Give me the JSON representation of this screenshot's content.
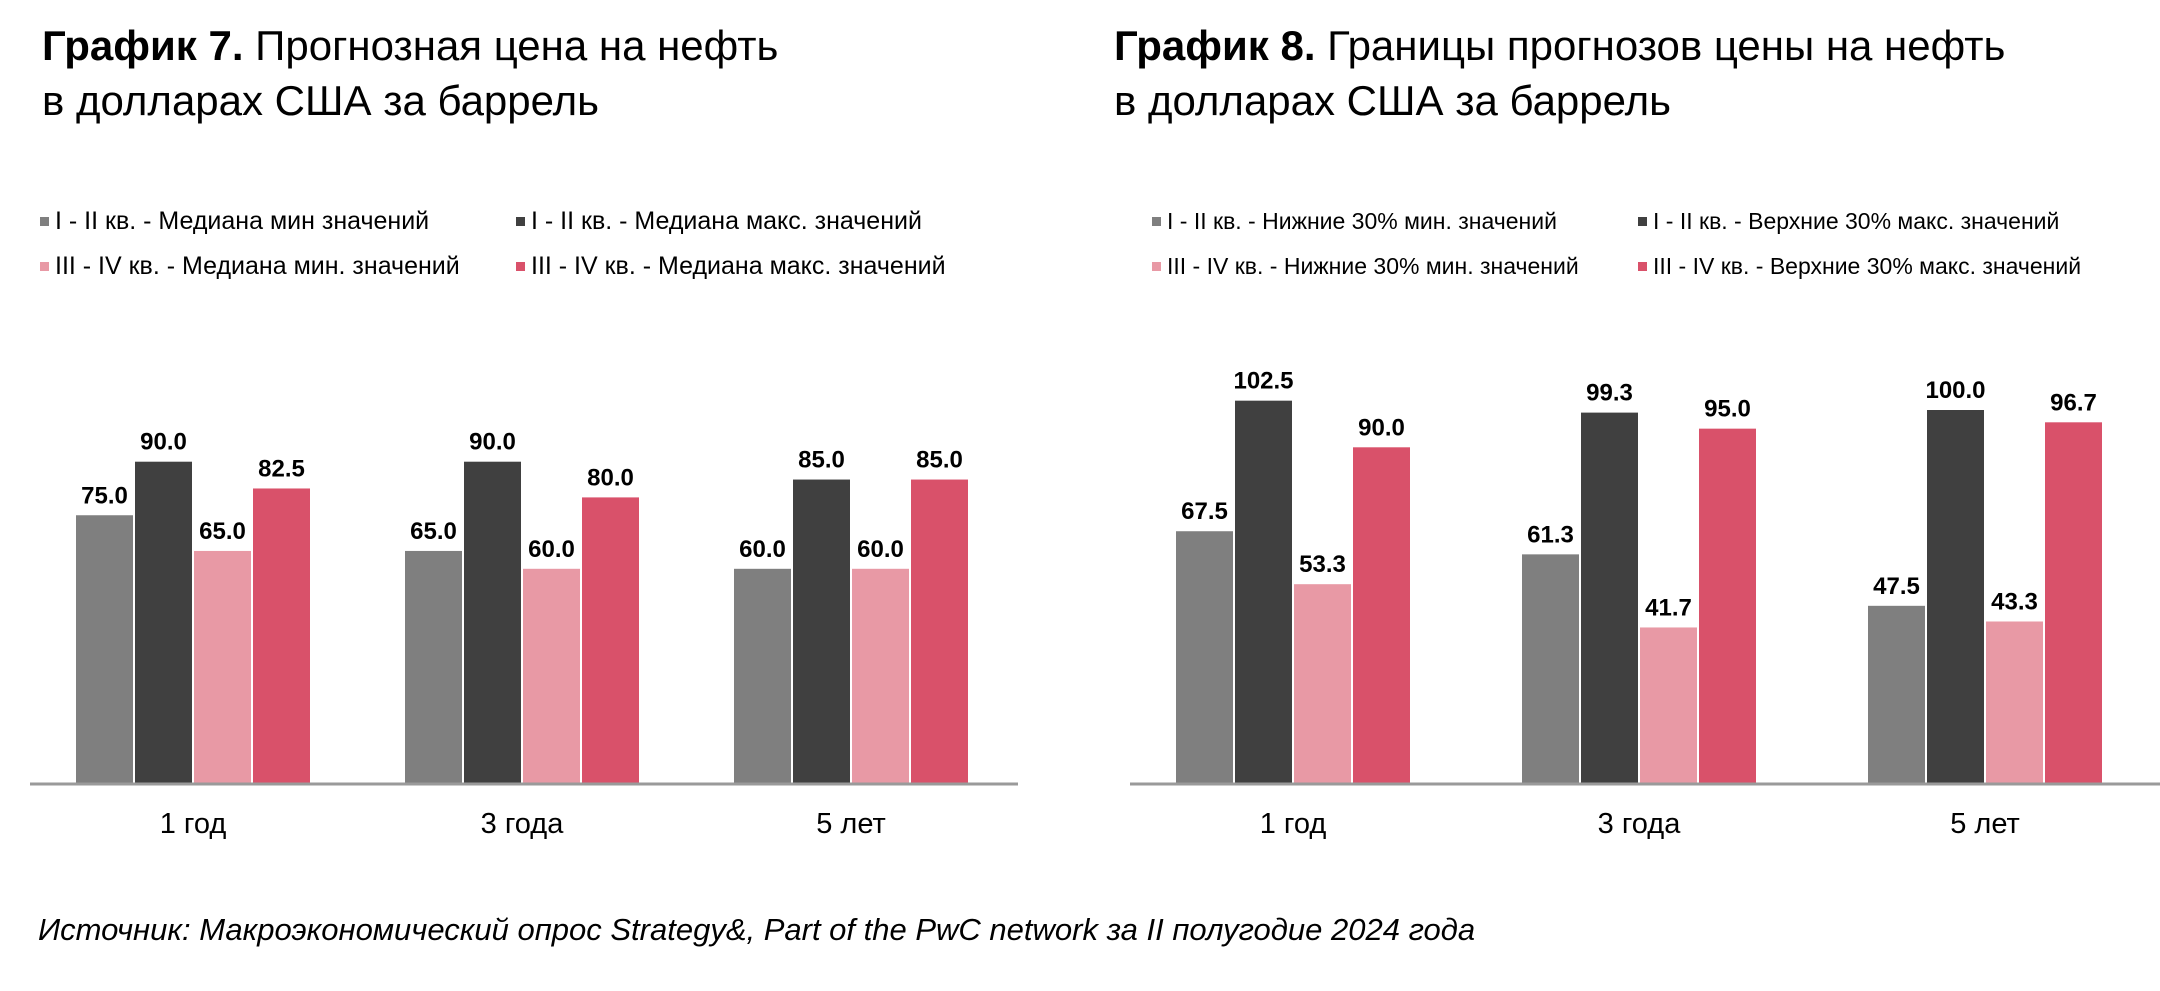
{
  "colors": {
    "series_1": "#7f7f7f",
    "series_2": "#404040",
    "series_3": "#e899a5",
    "series_4": "#d9516a",
    "axis": "#9a9a9a"
  },
  "chart_data": [
    {
      "type": "bar",
      "title_prefix": "График 7.",
      "title_line1_rest": " Прогнозная цена на нефть",
      "title_line2": "в долларах США за баррель",
      "categories": [
        "1 год",
        "3 года",
        "5 лет"
      ],
      "series": [
        {
          "name": "I - II кв. - Медиана мин значений",
          "values": [
            75.0,
            65.0,
            60.0
          ],
          "labels": [
            "75.0",
            "65.0",
            "60.0"
          ]
        },
        {
          "name": "I - II кв. - Медиана макс. значений",
          "values": [
            90.0,
            90.0,
            85.0
          ],
          "labels": [
            "90.0",
            "90.0",
            "85.0"
          ]
        },
        {
          "name": "III  - IV кв. - Медиана мин. значений",
          "values": [
            65.0,
            60.0,
            60.0
          ],
          "labels": [
            "65.0",
            "60.0",
            "60.0"
          ]
        },
        {
          "name": "III  - IV кв. - Медиана макс. значений",
          "values": [
            82.5,
            80.0,
            85.0
          ],
          "labels": [
            "82.5",
            "80.0",
            "85.0"
          ]
        }
      ],
      "legend_position": "top",
      "grid": false,
      "ylim": [
        0,
        100
      ]
    },
    {
      "type": "bar",
      "title_prefix": "График 8.",
      "title_line1_rest": " Границы прогнозов цены на нефть",
      "title_line2": "в долларах США за баррель",
      "categories": [
        "1 год",
        "3 года",
        "5 лет"
      ],
      "series": [
        {
          "name": "I - II кв. - Нижние 30% мин. значений",
          "values": [
            67.5,
            61.3,
            47.5
          ],
          "labels": [
            "67.5",
            "61.3",
            "47.5"
          ]
        },
        {
          "name": "I - II кв. - Верхние 30% макс. значений",
          "values": [
            102.5,
            99.3,
            100.0
          ],
          "labels": [
            "102.5",
            "99.3",
            "100.0"
          ]
        },
        {
          "name": "III  - IV кв. - Нижние 30% мин. значений",
          "values": [
            53.3,
            41.7,
            43.3
          ],
          "labels": [
            "53.3",
            "41.7",
            "43.3"
          ]
        },
        {
          "name": "III  - IV кв. - Верхние 30% макс. значений",
          "values": [
            90.0,
            95.0,
            96.7
          ],
          "labels": [
            "90.0",
            "95.0",
            "96.7"
          ]
        }
      ],
      "legend_position": "top",
      "grid": false,
      "ylim": [
        0,
        110
      ]
    }
  ],
  "source": "Источник: Макроэкономический опрос Strategy&, Part of the PwC network за II полугодие 2024 года"
}
